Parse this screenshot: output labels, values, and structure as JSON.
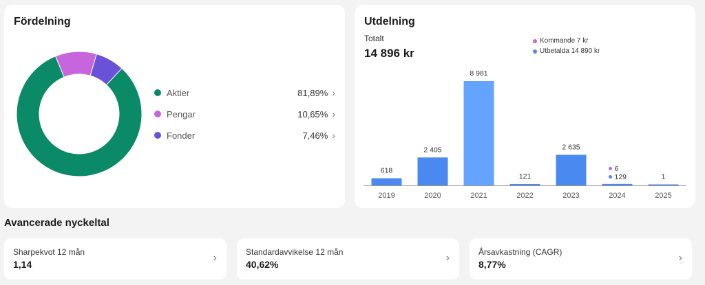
{
  "distribution": {
    "title": "Fördelning",
    "items": [
      {
        "label": "Aktier",
        "value": "81,89%",
        "pct": 81.89,
        "color": "#0a8a66"
      },
      {
        "label": "Pengar",
        "value": "10,65%",
        "pct": 10.65,
        "color": "#c766dc"
      },
      {
        "label": "Fonder",
        "value": "7,46%",
        "pct": 7.46,
        "color": "#6a52d8"
      }
    ],
    "chevron": "›"
  },
  "dividend": {
    "title": "Utdelning",
    "total_label": "Totalt",
    "total_value": "14 896 kr",
    "legend": [
      {
        "label": "Kommande 7 kr",
        "color": "#c766dc"
      },
      {
        "label": "Utbetalda 14 890 kr",
        "color": "#4a8af0"
      }
    ]
  },
  "chart_data": {
    "type": "bar",
    "categories": [
      "2019",
      "2020",
      "2021",
      "2022",
      "2023",
      "2024",
      "2025"
    ],
    "values": [
      618,
      2405,
      8981,
      121,
      2635,
      129,
      1
    ],
    "labels": [
      "618",
      "2 405",
      "8 981",
      "121",
      "2 635",
      "129",
      "1"
    ],
    "upcoming": [
      0,
      0,
      0,
      0,
      0,
      6,
      0
    ],
    "upcoming_labels": [
      "",
      "",
      "",
      "",
      "",
      "6",
      ""
    ],
    "ylim": [
      0,
      8981
    ],
    "colors": {
      "paid": "#4a8af0",
      "highlight": "#64a3ff",
      "upcoming": "#c766dc"
    },
    "title": "",
    "xlabel": "",
    "ylabel": ""
  },
  "advanced": {
    "title": "Avancerade nyckeltal",
    "cards": [
      {
        "label": "Sharpekvot 12 mån",
        "value": "1,14"
      },
      {
        "label": "Standardavvikelse 12 mån",
        "value": "40,62%"
      },
      {
        "label": "Årsavkastning (CAGR)",
        "value": "8,77%"
      }
    ],
    "chevron": "›"
  }
}
